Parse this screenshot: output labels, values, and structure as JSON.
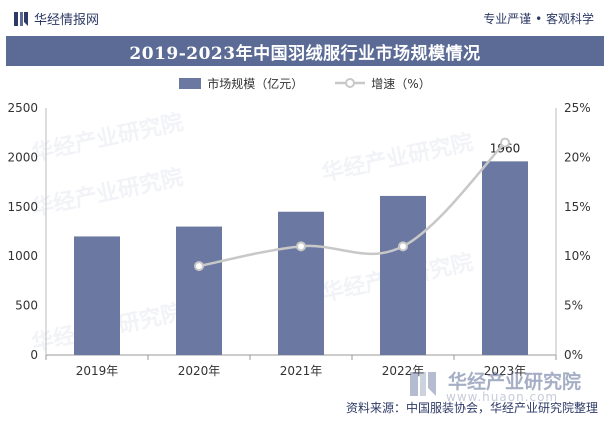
{
  "header": {
    "brand_name": "华经情报网",
    "slogan": "专业严谨 • 客观科学",
    "title": "2019-2023年中国羽绒服行业市场规模情况"
  },
  "legend": {
    "bar_label": "市场规模（亿元）",
    "line_label": "增速（%）"
  },
  "watermark": {
    "name": "华经产业研究院",
    "url": "www.huaon.com"
  },
  "source": "资料来源：中国服装协会，华经产业研究院整理",
  "colors": {
    "bar": "#6b79a2",
    "line": "#c8c8c8",
    "title_bg": "#5b6b96"
  },
  "chart_data": {
    "type": "bar+line",
    "title": "2019-2023年中国羽绒服行业市场规模情况",
    "categories": [
      "2019年",
      "2020年",
      "2021年",
      "2022年",
      "2023年"
    ],
    "series": [
      {
        "name": "市场规模（亿元）",
        "type": "bar",
        "axis": "left",
        "values": [
          1200,
          1300,
          1450,
          1610,
          1960
        ]
      },
      {
        "name": "增速（%）",
        "type": "line",
        "axis": "right",
        "values": [
          null,
          9,
          11,
          11,
          21.5
        ]
      }
    ],
    "data_labels": [
      {
        "category": "2023年",
        "text": "1960"
      }
    ],
    "left_axis": {
      "min": 0,
      "max": 2500,
      "ticks": [
        0,
        500,
        1000,
        1500,
        2000,
        2500
      ]
    },
    "right_axis": {
      "min": 0,
      "max": 25,
      "ticks": [
        "0%",
        "5%",
        "10%",
        "15%",
        "20%",
        "25%"
      ]
    },
    "grid": false,
    "legend_position": "top-center"
  }
}
